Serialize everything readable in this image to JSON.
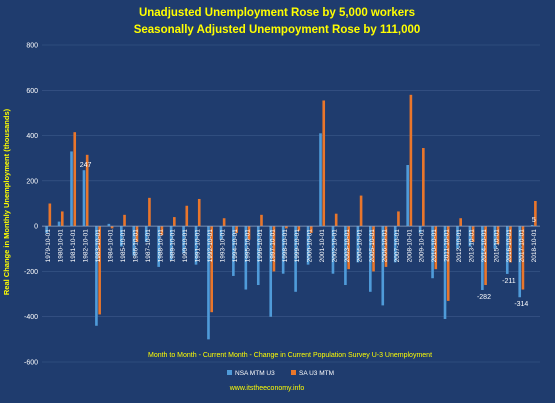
{
  "colors": {
    "background": "#1f3c6e",
    "title": "#ffff00",
    "axis_title": "#ffff00",
    "tick_text": "#ffffff",
    "grid": "#3d5a8a",
    "nsa": "#4f9bd9",
    "sa": "#e9762b"
  },
  "chart_data": {
    "type": "bar",
    "title": "Unadjusted Unemployment Rose by 5,000 workers",
    "subtitle": "Seasonally Adjusted Unempoyment  Rose by 111,000",
    "ylabel": "Real Change in Monthly Unemployment (thousands)",
    "xlabel": "Month to Month - Current Month - Change in Current Population Survey U-3 Unemployment",
    "source": "www.itstheeconomy.info",
    "ylim": [
      -600,
      800
    ],
    "yticks": [
      800,
      600,
      400,
      200,
      0,
      -200,
      -400,
      -600
    ],
    "grid": true,
    "legend_position": "bottom",
    "categories": [
      "1979-10-01",
      "1980-10-01",
      "1981-10-01",
      "1982-10-01",
      "1983-10-01",
      "1984-10-01",
      "1985-10-01",
      "1986-10-01",
      "1987-10-01",
      "1988-10-01",
      "1989-10-01",
      "1990-10-01",
      "1991-10-01",
      "1992-10-01",
      "1993-10-01",
      "1994-10-01",
      "1995-10-01",
      "1996-10-01",
      "1997-10-01",
      "1998-10-01",
      "1999-10-01",
      "2000-10-01",
      "2001-10-01",
      "2002-10-01",
      "2003-10-01",
      "2004-10-01",
      "2005-10-01",
      "2006-10-01",
      "2007-10-01",
      "2008-10-01",
      "2009-10-01",
      "2010-10-01",
      "2011-10-01",
      "2012-10-01",
      "2013-10-01",
      "2014-10-01",
      "2015-10-01",
      "2016-10-01",
      "2017-10-01",
      "2018-10-01"
    ],
    "series": [
      {
        "name": "NSA MTM U3",
        "values": [
          -30,
          20,
          330,
          247,
          -440,
          10,
          -90,
          -130,
          -70,
          -180,
          -150,
          -120,
          -170,
          -500,
          -60,
          -220,
          -280,
          -260,
          -400,
          -210,
          -290,
          -170,
          410,
          -210,
          -260,
          -160,
          -290,
          -350,
          -160,
          270,
          -30,
          -230,
          -410,
          -100,
          -90,
          -282,
          -100,
          -211,
          -314,
          5
        ]
      },
      {
        "name": "SA U3 MTM",
        "values": [
          100,
          65,
          415,
          315,
          -390,
          -10,
          50,
          -70,
          125,
          -40,
          40,
          90,
          120,
          -380,
          35,
          -30,
          -60,
          50,
          -200,
          -10,
          -20,
          -30,
          555,
          55,
          -190,
          135,
          -200,
          -180,
          65,
          580,
          345,
          -190,
          -330,
          35,
          -70,
          -260,
          -80,
          -160,
          -280,
          111
        ]
      }
    ],
    "data_labels": [
      {
        "text": "247",
        "series": 0,
        "index": 3
      },
      {
        "text": "-282",
        "series": 0,
        "index": 35
      },
      {
        "text": "-211",
        "series": 0,
        "index": 37
      },
      {
        "text": "-314",
        "series": 0,
        "index": 38
      },
      {
        "text": "5",
        "series": 0,
        "index": 39
      }
    ]
  }
}
